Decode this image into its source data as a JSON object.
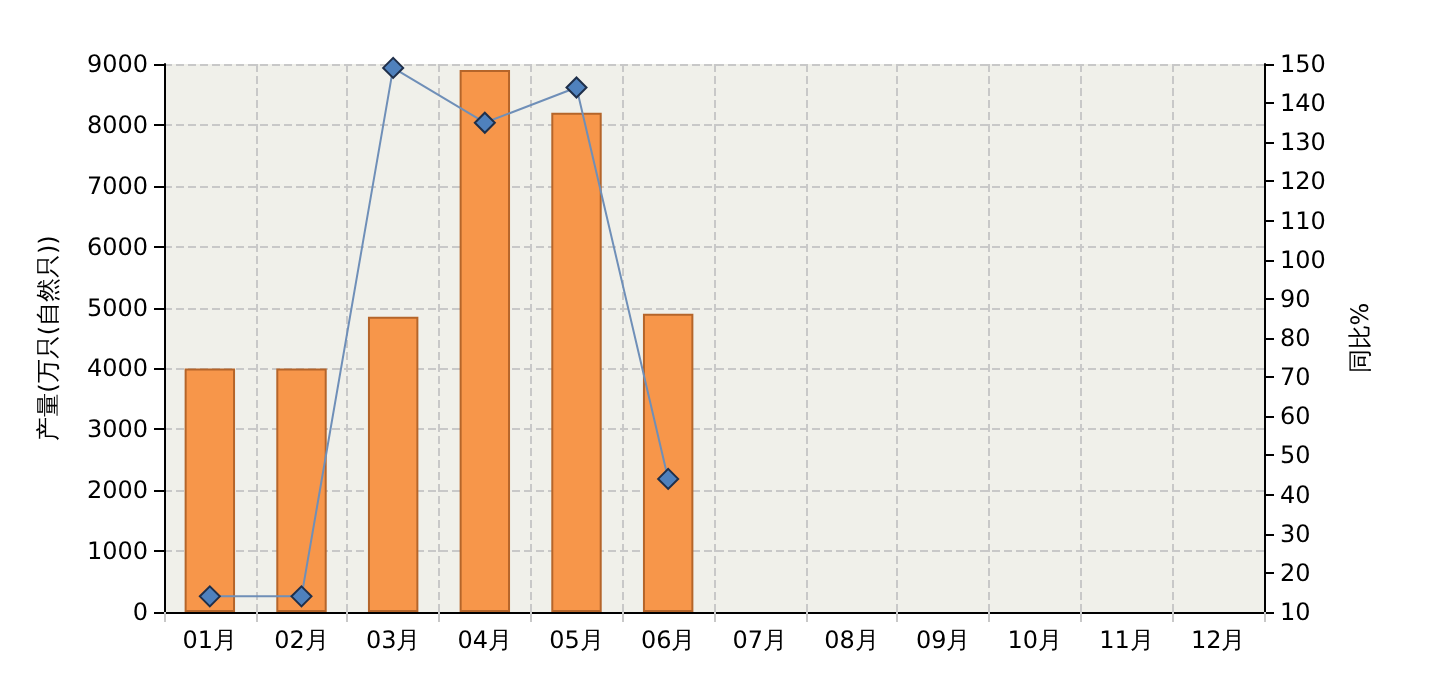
{
  "chart_data": {
    "type": "bar",
    "categories": [
      "01月",
      "02月",
      "03月",
      "04月",
      "05月",
      "06月",
      "07月",
      "08月",
      "09月",
      "10月",
      "11月",
      "12月"
    ],
    "series": [
      {
        "color": "#f7964a",
        "values": [
          4000,
          4000,
          4850,
          8900,
          8200,
          4900,
          null,
          null,
          null,
          null,
          null,
          null
        ]
      },
      {
        "type": "line",
        "axis": "y2",
        "color": "#4f81bd",
        "values": [
          14,
          14,
          149,
          135,
          144,
          44,
          null,
          null,
          null,
          null,
          null,
          null
        ]
      }
    ],
    "ylabel": "产量(万只(自然只))",
    "y2label": "同比%",
    "ylim": [
      0,
      9000
    ],
    "yticks": [
      0,
      1000,
      2000,
      3000,
      4000,
      5000,
      6000,
      7000,
      8000,
      9000
    ],
    "y2lim": [
      10,
      150
    ],
    "y2ticks": [
      10,
      20,
      30,
      40,
      50,
      60,
      70,
      80,
      90,
      100,
      110,
      120,
      130,
      140,
      150
    ],
    "grid": true,
    "marker": "diamond",
    "line_style": "solid"
  }
}
